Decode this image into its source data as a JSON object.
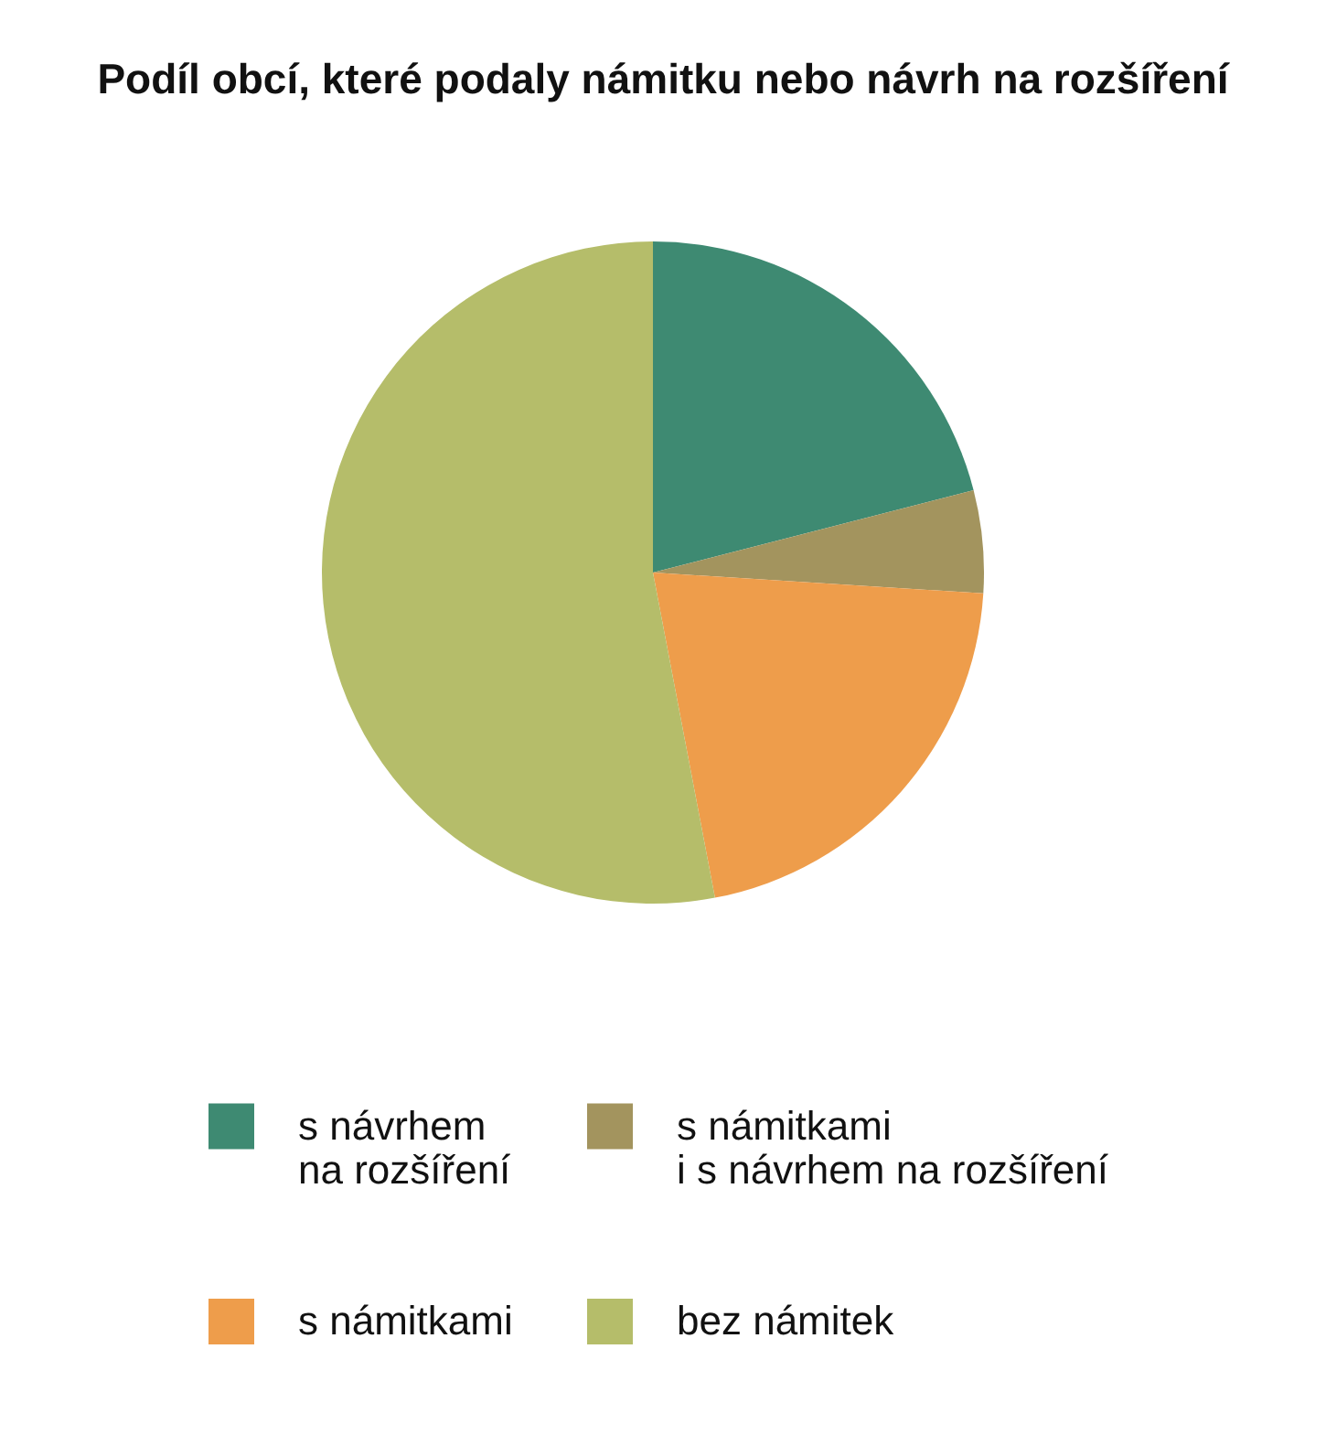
{
  "chart_data": {
    "type": "pie",
    "title": "Podíl obcí, které podaly námitku nebo návrh na rozšíření",
    "categories": [
      "s návrhem\nna rozšíření",
      "s námitkami\ni s návrhem na rozšíření",
      "s námitkami",
      "bez námitek"
    ],
    "values": [
      21,
      5,
      21,
      53
    ],
    "colors": [
      "#3e8a72",
      "#a3945e",
      "#ee9d4b",
      "#b5bd6a"
    ],
    "legend": "bottom"
  }
}
